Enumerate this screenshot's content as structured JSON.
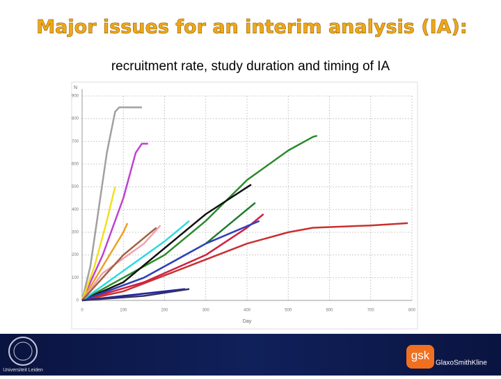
{
  "title": "Major issues for an interim analysis (IA):",
  "subtitle": "recruitment rate, study duration and timing of IA",
  "chart_data": {
    "type": "line",
    "xlabel": "Day",
    "ylabel": "N",
    "xlim": [
      0,
      800
    ],
    "xticks": [
      0,
      100,
      200,
      300,
      400,
      500,
      600,
      700,
      800
    ],
    "ylim": [
      0,
      900
    ],
    "yticks": [
      0,
      100,
      200,
      300,
      400,
      500,
      600,
      700,
      800,
      900
    ],
    "grid": true,
    "series": [
      {
        "color": "#a0a0a0",
        "x": [
          0,
          20,
          40,
          60,
          80,
          90,
          145
        ],
        "values": [
          0,
          150,
          400,
          650,
          830,
          850,
          850
        ]
      },
      {
        "color": "#c040d0",
        "x": [
          0,
          50,
          100,
          130,
          145,
          160
        ],
        "values": [
          0,
          200,
          450,
          650,
          690,
          690
        ]
      },
      {
        "color": "#f0e020",
        "x": [
          0,
          30,
          60,
          80
        ],
        "values": [
          0,
          150,
          350,
          500
        ]
      },
      {
        "color": "#2a8a2a",
        "x": [
          0,
          100,
          200,
          300,
          400,
          500,
          560,
          570
        ],
        "values": [
          0,
          100,
          200,
          350,
          530,
          660,
          720,
          725
        ]
      },
      {
        "color": "#111111",
        "x": [
          0,
          100,
          200,
          300,
          410
        ],
        "values": [
          0,
          80,
          230,
          380,
          510
        ]
      },
      {
        "color": "#1f7a2f",
        "x": [
          0,
          150,
          300,
          400,
          420
        ],
        "values": [
          0,
          100,
          250,
          400,
          430
        ]
      },
      {
        "color": "#c83030",
        "x": [
          0,
          100,
          200,
          300,
          400,
          500,
          560,
          700,
          790
        ],
        "values": [
          0,
          40,
          110,
          180,
          250,
          300,
          320,
          330,
          340
        ]
      },
      {
        "color": "#d02040",
        "x": [
          0,
          150,
          300,
          400,
          440
        ],
        "values": [
          0,
          80,
          200,
          320,
          380
        ]
      },
      {
        "color": "#3040c0",
        "x": [
          0,
          150,
          300,
          430
        ],
        "values": [
          0,
          100,
          250,
          350
        ]
      },
      {
        "color": "#30d8e0",
        "x": [
          0,
          100,
          200,
          260
        ],
        "values": [
          0,
          130,
          260,
          350
        ]
      },
      {
        "color": "#f0a020",
        "x": [
          0,
          50,
          100,
          110
        ],
        "values": [
          0,
          150,
          300,
          340
        ]
      },
      {
        "color": "#f0a0b0",
        "x": [
          0,
          50,
          150,
          190
        ],
        "values": [
          0,
          120,
          250,
          330
        ]
      },
      {
        "color": "#a06040",
        "x": [
          0,
          100,
          180
        ],
        "values": [
          0,
          200,
          320
        ]
      },
      {
        "color": "#2020a0",
        "x": [
          0,
          100,
          250
        ],
        "values": [
          0,
          20,
          50
        ]
      },
      {
        "color": "#333366",
        "x": [
          0,
          150,
          260
        ],
        "values": [
          0,
          20,
          50
        ]
      }
    ]
  },
  "footer": {
    "left_logo": "Universiteit Leiden",
    "right_logo_mark": "gsk",
    "right_logo_text": "GlaxoSmithKline"
  }
}
